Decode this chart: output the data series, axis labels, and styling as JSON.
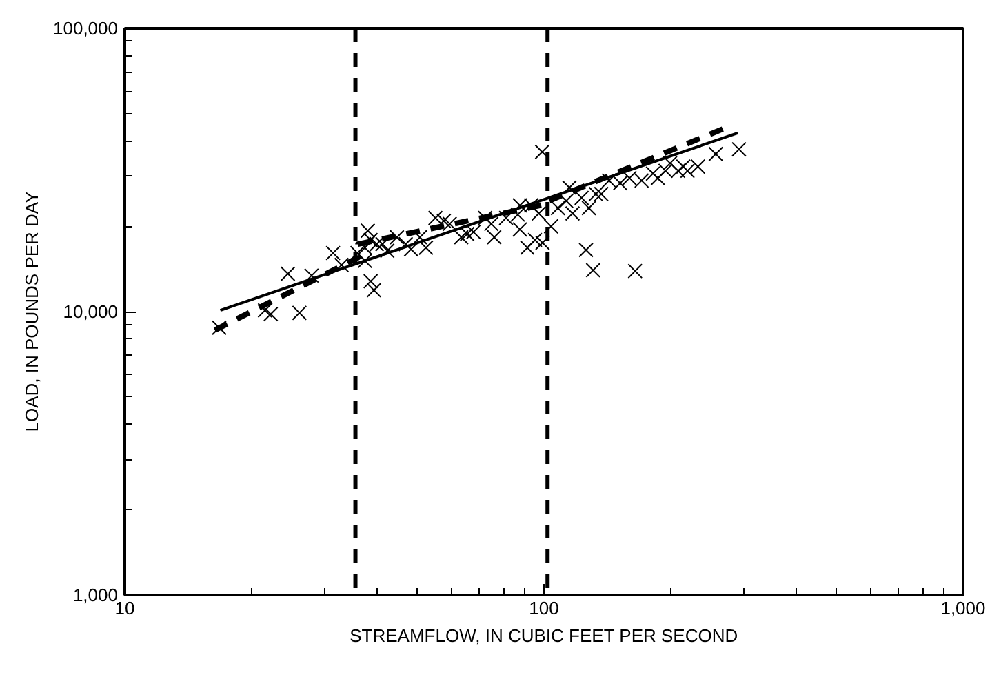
{
  "chart_data": {
    "type": "scatter",
    "xlabel": "STREAMFLOW, IN CUBIC FEET PER SECOND",
    "ylabel": "LOAD, IN POUNDS PER DAY",
    "log": "xy",
    "grid": false,
    "xlim": [
      10,
      1000
    ],
    "ylim": [
      1000,
      100000
    ],
    "xticks": [
      10,
      100,
      {
        "value": 1000,
        "label": "1,000"
      }
    ],
    "yticks": [
      {
        "value": 1000,
        "label": "1,000"
      },
      {
        "value": 10000,
        "label": "10,000"
      },
      {
        "value": 100000,
        "label": "100,000"
      }
    ],
    "ref_lines": [
      {
        "axis": "x",
        "value": 35.5,
        "label": null,
        "color": "#000000",
        "line_style": "dashed"
      },
      {
        "axis": "x",
        "value": 102,
        "label": null,
        "color": "#000000",
        "line_style": "dashed"
      }
    ],
    "series": [
      {
        "marker": "cross",
        "color": "#000000",
        "x": [
          16.8,
          21.6,
          22.3,
          26.1,
          24.5,
          27.9,
          31.4,
          32.9,
          35.9,
          37.4,
          38.0,
          38.6,
          37.4,
          38.6,
          39.3,
          39.9,
          41.2,
          42.3,
          44.6,
          46.8,
          48.2,
          50.6,
          52.3,
          55.1,
          57.7,
          59.6,
          63.5,
          65.6,
          67.9,
          72.4,
          74.9,
          76.1,
          81.2,
          86.6,
          87.6,
          91.3,
          95.2,
          99.2,
          93.2,
          97.2,
          87.6,
          104,
          113,
          115,
          117,
          108,
          123,
          128,
          126,
          131,
          133,
          137,
          143,
          152,
          160,
          171,
          182,
          187,
          195,
          200,
          209,
          215,
          220,
          233,
          165,
          257,
          292,
          99
        ],
        "values": [
          8770,
          10100,
          9800,
          9900,
          13600,
          13400,
          16100,
          14600,
          16100,
          16800,
          19300,
          17900,
          15100,
          12800,
          11900,
          17300,
          17300,
          16400,
          18300,
          17300,
          16600,
          18300,
          16800,
          21400,
          20900,
          20400,
          18300,
          18800,
          19100,
          21400,
          20400,
          18300,
          21400,
          22000,
          19500,
          16800,
          17900,
          17500,
          23700,
          22200,
          23700,
          20000,
          24600,
          27400,
          22200,
          23200,
          25200,
          23200,
          16500,
          14000,
          26000,
          26000,
          29000,
          28400,
          29600,
          29000,
          30700,
          29600,
          31400,
          33400,
          31400,
          32500,
          31400,
          32500,
          13900,
          36000,
          37400,
          36600
        ]
      },
      {
        "type": "line",
        "marker": "none",
        "color": "#000000",
        "line_style": "solid",
        "x": [
          16.9,
          290
        ],
        "values": [
          10100,
          42700
        ]
      },
      {
        "type": "line",
        "marker": "none",
        "color": "#000000",
        "line_style": "dashed",
        "x": [
          16.4,
          36,
          36,
          102,
          102,
          272
        ],
        "values": [
          8600,
          15500,
          17300,
          24000,
          24500,
          44600
        ]
      }
    ]
  }
}
